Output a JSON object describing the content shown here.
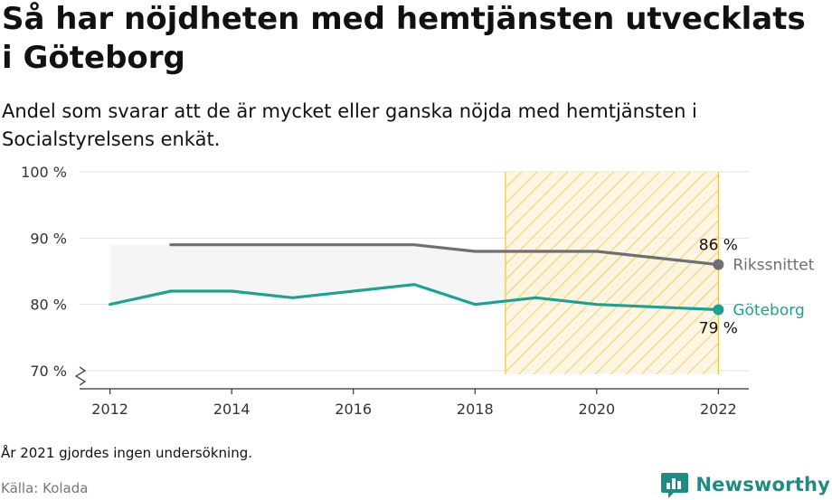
{
  "title": "Så har nöjdheten med hemtjänsten utvecklats i Göteborg",
  "subtitle": "Andel som svarar att de är mycket eller ganska nöjda med hemtjänsten i Socialstyrelsens enkät.",
  "note": "År 2021 gjordes ingen undersökning.",
  "source": "Källa: Kolada",
  "brand": "Newsworthy",
  "colors": {
    "goteborg": "#1aa394",
    "riks": "#6e6e73",
    "highlight": "#f5c242",
    "range_fill": "#f2f2f2"
  },
  "chart_data": {
    "type": "line",
    "x_ticks": [
      "2012",
      "2014",
      "2016",
      "2018",
      "2020",
      "2022"
    ],
    "y_ticks": [
      "70 %",
      "80 %",
      "90 %",
      "100 %"
    ],
    "ylim": [
      70,
      100
    ],
    "xlim": [
      2011.5,
      2022.5
    ],
    "grid": true,
    "y_axis_break": true,
    "highlight_range": [
      2018.5,
      2022
    ],
    "series": [
      {
        "name": "Göteborg",
        "color": "#1aa394",
        "points": [
          [
            2012,
            80
          ],
          [
            2013,
            82
          ],
          [
            2014,
            82
          ],
          [
            2015,
            81
          ],
          [
            2016,
            82
          ],
          [
            2017,
            83
          ],
          [
            2018,
            80
          ],
          [
            2019,
            81
          ],
          [
            2020,
            80
          ],
          [
            2022,
            79.2
          ]
        ],
        "end_label": "79 %"
      },
      {
        "name": "Rikssnittet",
        "color": "#6e6e73",
        "points": [
          [
            2013,
            89
          ],
          [
            2014,
            89
          ],
          [
            2015,
            89
          ],
          [
            2016,
            89
          ],
          [
            2017,
            89
          ],
          [
            2018,
            88
          ],
          [
            2019,
            88
          ],
          [
            2020,
            88
          ],
          [
            2022,
            86
          ]
        ],
        "end_label": "86 %"
      }
    ],
    "shaded_band": {
      "upper": [
        [
          2012,
          89
        ],
        [
          2013,
          89
        ],
        [
          2014,
          89
        ],
        [
          2015,
          89
        ],
        [
          2016,
          89
        ],
        [
          2017,
          89
        ],
        [
          2018,
          88
        ],
        [
          2019,
          88
        ],
        [
          2020,
          88
        ],
        [
          2022,
          86
        ]
      ],
      "lower": [
        [
          2012,
          80
        ],
        [
          2013,
          82
        ],
        [
          2014,
          82
        ],
        [
          2015,
          81
        ],
        [
          2016,
          82
        ],
        [
          2017,
          83
        ],
        [
          2018,
          80
        ],
        [
          2019,
          81
        ],
        [
          2020,
          80
        ],
        [
          2022,
          79.2
        ]
      ]
    }
  }
}
